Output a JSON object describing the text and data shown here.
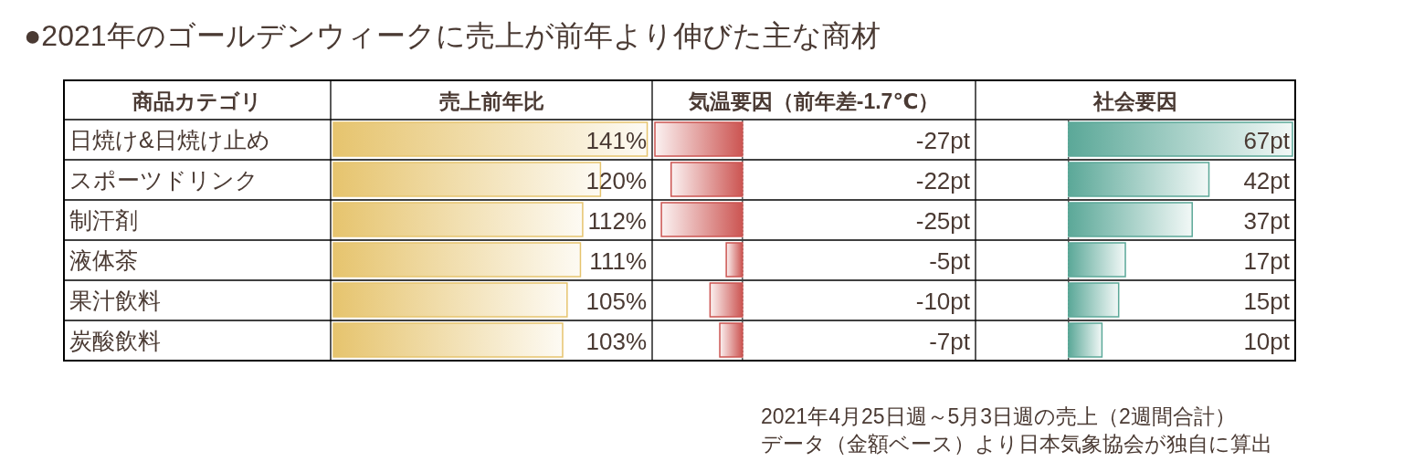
{
  "chart_data": [
    {
      "type": "other",
      "title": "●2021年のゴールデンウィークに売上が前年より伸びた主な商材",
      "annotations": [
        "2021年4月25日週～5月3日週の売上（2週間合計）",
        "データ（金額ベース）より日本気象協会が独自に算出"
      ]
    },
    {
      "type": "bar",
      "orientation": "horizontal",
      "title": "売上前年比",
      "ylabel": "商品カテゴリ",
      "categories": [
        "日焼け&日焼け止め",
        "スポーツドリンク",
        "制汗剤",
        "液体茶",
        "果汁飲料",
        "炭酸飲料"
      ],
      "values": [
        141,
        120,
        112,
        111,
        105,
        103
      ],
      "value_labels": [
        "141%",
        "120%",
        "112%",
        "111%",
        "105%",
        "103%"
      ],
      "color": "#e6c46e",
      "xlim": [
        0,
        142
      ],
      "tick_labels": "y"
    },
    {
      "type": "bar",
      "orientation": "horizontal",
      "title": "気温要因（前年差-1.7℃）",
      "values": [
        -27,
        -22,
        -25,
        -5,
        -10,
        -7
      ],
      "value_labels": [
        "-27pt",
        "-22pt",
        "-25pt",
        "-5pt",
        "-10pt",
        "-7pt"
      ],
      "color": "#cc5552",
      "xlim": [
        -27,
        71
      ],
      "ref_lines": [
        {
          "axis": "x",
          "value": 0,
          "color": "#000000",
          "line_style": "dotted"
        }
      ]
    },
    {
      "type": "bar",
      "orientation": "horizontal",
      "title": "社会要因",
      "values": [
        67,
        42,
        37,
        17,
        15,
        10
      ],
      "value_labels": [
        "67pt",
        "42pt",
        "37pt",
        "17pt",
        "15pt",
        "10pt"
      ],
      "color": "#5ba898",
      "xlim": [
        -27,
        67
      ],
      "ref_lines": [
        {
          "axis": "x",
          "value": 0,
          "color": "#000000",
          "line_style": "dotted"
        }
      ]
    }
  ]
}
